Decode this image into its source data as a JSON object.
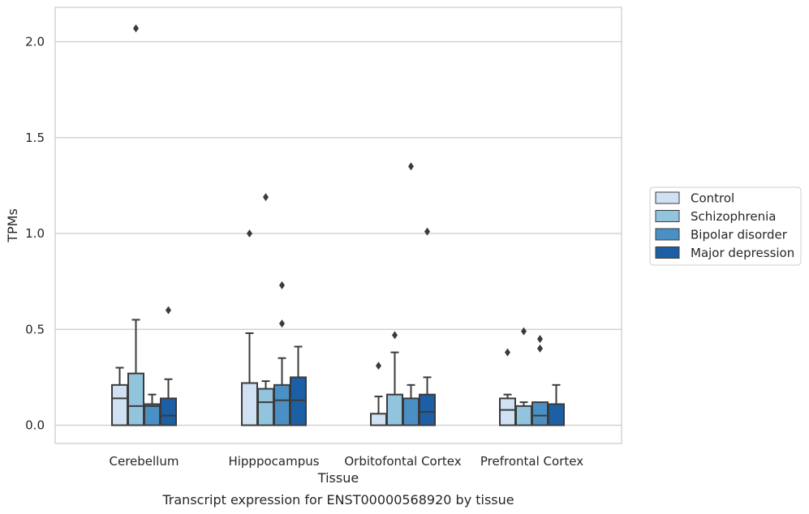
{
  "caption": "Transcript expression for ENST00000568920 by tissue",
  "chart_data": {
    "type": "box",
    "title": "",
    "xlabel": "Tissue",
    "ylabel": "TPMs",
    "ylim": [
      -0.1,
      2.18
    ],
    "yticks": [
      "0.0",
      "0.5",
      "1.0",
      "1.5",
      "2.0"
    ],
    "grid": "horizontal",
    "legend_position": "right",
    "categories": [
      "Cerebellum",
      "Hipppocampus",
      "Orbitofontal Cortex",
      "Prefrontal Cortex"
    ],
    "series": [
      {
        "name": "Control",
        "color": "#cfe1f2",
        "boxes": [
          {
            "whislo": 0.0,
            "q1": 0.0,
            "med": 0.14,
            "q3": 0.21,
            "whishi": 0.3,
            "fliers": []
          },
          {
            "whislo": 0.0,
            "q1": 0.0,
            "med": 0.0,
            "q3": 0.22,
            "whishi": 0.48,
            "fliers": [
              1.0
            ]
          },
          {
            "whislo": 0.0,
            "q1": 0.0,
            "med": 0.0,
            "q3": 0.06,
            "whishi": 0.15,
            "fliers": [
              0.31
            ]
          },
          {
            "whislo": 0.0,
            "q1": 0.0,
            "med": 0.08,
            "q3": 0.14,
            "whishi": 0.16,
            "fliers": [
              0.38
            ]
          }
        ]
      },
      {
        "name": "Schizophrenia",
        "color": "#93c4de",
        "boxes": [
          {
            "whislo": 0.0,
            "q1": 0.0,
            "med": 0.1,
            "q3": 0.27,
            "whishi": 0.55,
            "fliers": [
              2.07
            ]
          },
          {
            "whislo": 0.0,
            "q1": 0.0,
            "med": 0.12,
            "q3": 0.19,
            "whishi": 0.23,
            "fliers": [
              1.19
            ]
          },
          {
            "whislo": 0.0,
            "q1": 0.0,
            "med": 0.0,
            "q3": 0.16,
            "whishi": 0.38,
            "fliers": [
              0.47
            ]
          },
          {
            "whislo": 0.0,
            "q1": 0.0,
            "med": 0.0,
            "q3": 0.1,
            "whishi": 0.12,
            "fliers": [
              0.49
            ]
          }
        ]
      },
      {
        "name": "Bipolar disorder",
        "color": "#4a90c4",
        "boxes": [
          {
            "whislo": 0.0,
            "q1": 0.0,
            "med": 0.1,
            "q3": 0.11,
            "whishi": 0.16,
            "fliers": []
          },
          {
            "whislo": 0.0,
            "q1": 0.0,
            "med": 0.13,
            "q3": 0.21,
            "whishi": 0.35,
            "fliers": [
              0.73,
              0.53
            ]
          },
          {
            "whislo": 0.0,
            "q1": 0.0,
            "med": 0.0,
            "q3": 0.14,
            "whishi": 0.21,
            "fliers": [
              1.35
            ]
          },
          {
            "whislo": 0.0,
            "q1": 0.0,
            "med": 0.05,
            "q3": 0.12,
            "whishi": 0.12,
            "fliers": [
              0.45,
              0.4
            ]
          }
        ]
      },
      {
        "name": "Major depression",
        "color": "#1c5fa4",
        "boxes": [
          {
            "whislo": 0.0,
            "q1": 0.0,
            "med": 0.05,
            "q3": 0.14,
            "whishi": 0.24,
            "fliers": [
              0.6
            ]
          },
          {
            "whislo": 0.0,
            "q1": 0.0,
            "med": 0.13,
            "q3": 0.25,
            "whishi": 0.41,
            "fliers": []
          },
          {
            "whislo": 0.0,
            "q1": 0.0,
            "med": 0.07,
            "q3": 0.16,
            "whishi": 0.25,
            "fliers": [
              1.01
            ]
          },
          {
            "whislo": 0.0,
            "q1": 0.0,
            "med": 0.0,
            "q3": 0.11,
            "whishi": 0.21,
            "fliers": []
          }
        ]
      }
    ]
  }
}
